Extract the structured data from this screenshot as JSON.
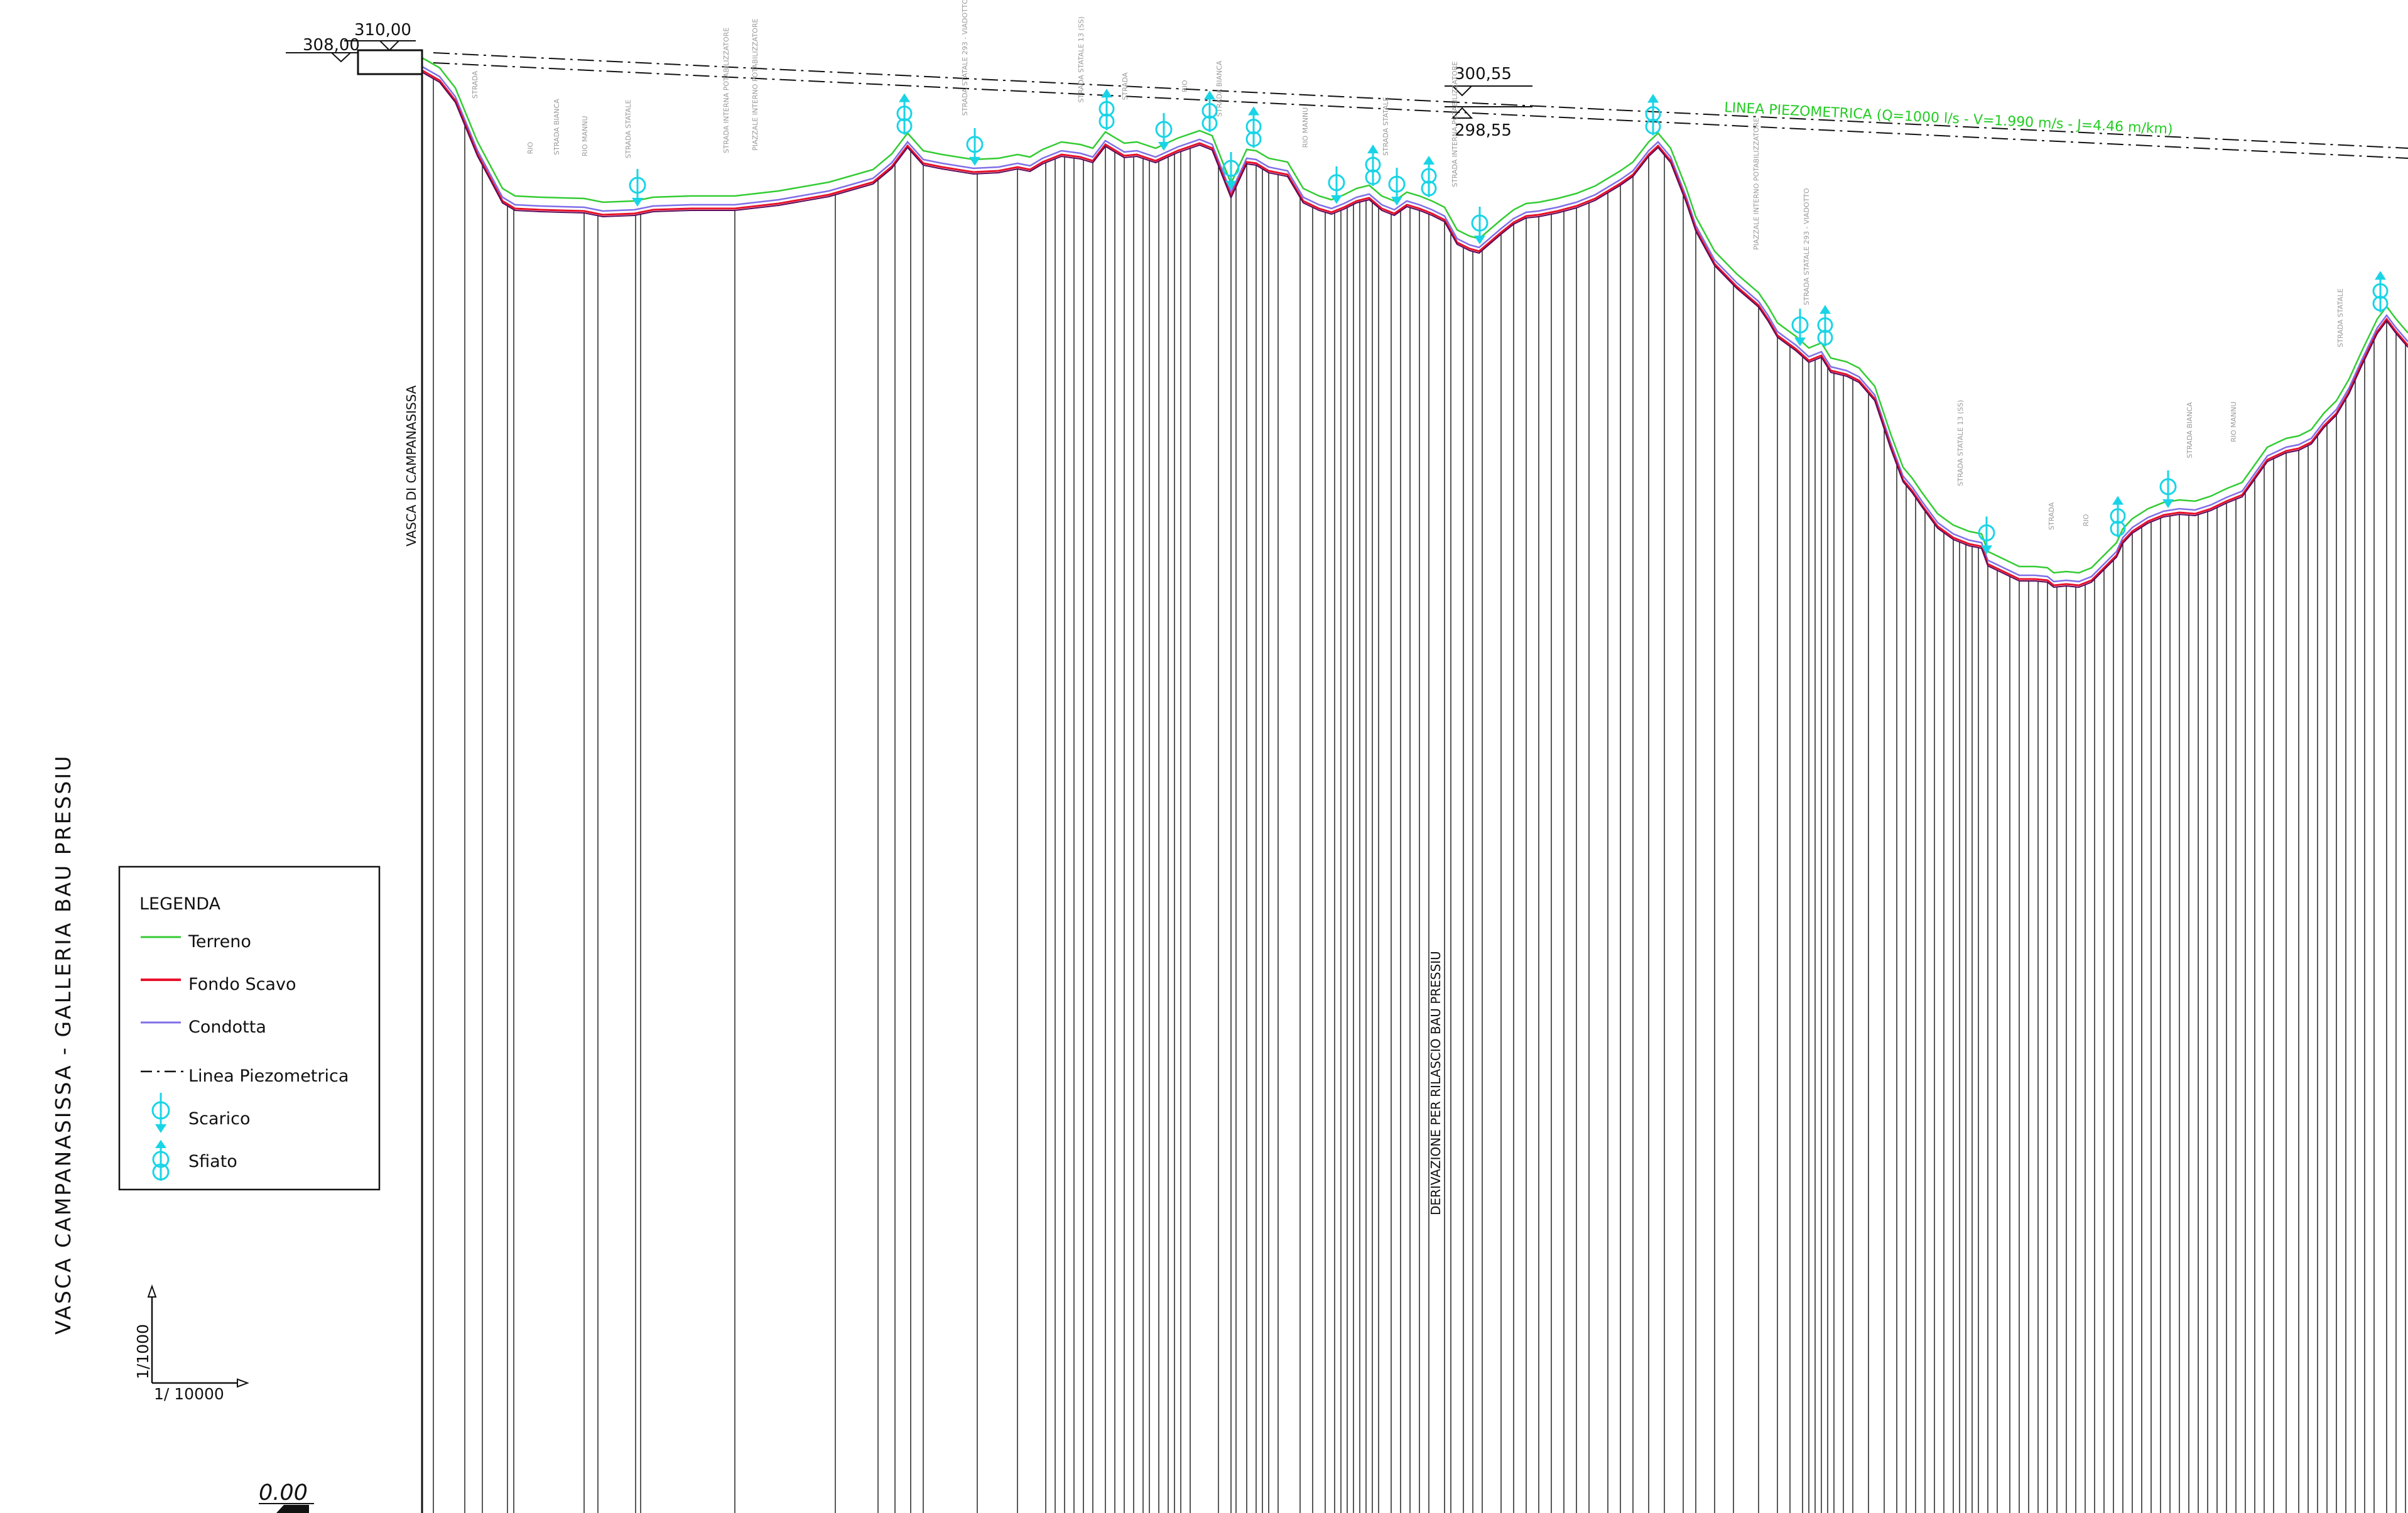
{
  "colors": {
    "terrain": "#33cc33",
    "excavation": "#e8102a",
    "pipe": "#7f6fe8",
    "piezometric": "#111111",
    "valve": "#19d4e6",
    "stations": "#111111"
  },
  "drawing": {
    "vertical_title": "VASCA CAMPANASISSA - GALLERIA BAU PRESSIU",
    "start_tank_label": "VASCA DI CAMPANASISSA",
    "derivation_label": "DERIVAZIONE PER RILASCIO BAU PRESSIU",
    "start_elev_upper": "310,00",
    "start_elev_lower": "308,00",
    "mid_elev_upper": "300,55",
    "mid_elev_lower": "298,55",
    "piezometric_note": "LINEA PIEZOMETRICA (Q=1000 l/s - V=1.990 m/s - J=4.46 m/km)",
    "datum": "0.00"
  },
  "scale": {
    "vertical": "1/1000",
    "horizontal": "1/ 10000"
  },
  "legend": {
    "title": "LEGENDA",
    "items": [
      {
        "label": "Terreno"
      },
      {
        "label": "Fondo Scavo"
      },
      {
        "label": "Condotta"
      },
      {
        "label": "Linea Piezometrica"
      },
      {
        "label": "Scarico"
      },
      {
        "label": "Sfiato"
      }
    ]
  },
  "annotations": [
    "STRADA",
    "RIO",
    "STRADA BIANCA",
    "RIO MANNU",
    "STRADA STATALE",
    "STRADA INTERNA POTABILIZZATORE",
    "PIAZZALE INTERNO POTABILIZZATORE",
    "STRADA STATALE 293 - VIADOTTO",
    "STRADA STATALE 13 (SS)"
  ]
}
